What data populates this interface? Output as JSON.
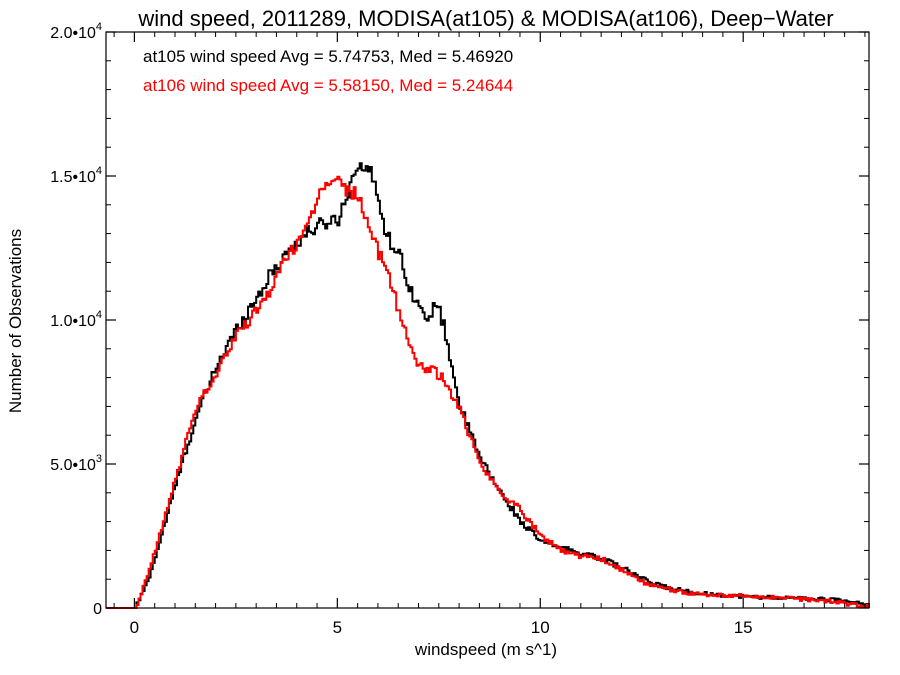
{
  "chart_data": {
    "type": "line",
    "title": "wind speed, 2011289, MODISA(at105) & MODISA(at106), Deep−Water",
    "xlabel": "windspeed (m s^1)",
    "ylabel": "Number of Observations",
    "xlim": [
      -0.7,
      18.1
    ],
    "ylim": [
      0,
      20000
    ],
    "x_ticks": [
      0,
      5,
      10,
      15
    ],
    "x_tick_labels": [
      "0",
      "5",
      "10",
      "15"
    ],
    "y_ticks": [
      0,
      5000,
      10000,
      15000,
      20000
    ],
    "y_tick_labels": [
      {
        "mant": "0",
        "exp": ""
      },
      {
        "mant": "5.0•10",
        "exp": "3"
      },
      {
        "mant": "1.0•10",
        "exp": "4"
      },
      {
        "mant": "1.5•10",
        "exp": "4"
      },
      {
        "mant": "2.0•10",
        "exp": "4"
      }
    ],
    "annotations": [
      "at105 wind speed Avg = 5.74753, Med = 5.46920",
      "at106 wind speed Avg = 5.58150, Med = 5.24644"
    ],
    "series": [
      {
        "color": "#000000",
        "x": [
          -0.7,
          0.0,
          0.1,
          0.3,
          0.5,
          0.7,
          1.0,
          1.3,
          1.5,
          2.0,
          2.5,
          3.0,
          3.3,
          3.7,
          4.0,
          4.3,
          4.7,
          5.0,
          5.3,
          5.5,
          5.6,
          5.8,
          6.0,
          6.2,
          6.5,
          6.8,
          7.0,
          7.2,
          7.4,
          7.6,
          8.0,
          8.5,
          9.0,
          9.5,
          10.0,
          10.5,
          11.0,
          11.5,
          12.0,
          12.5,
          13.0,
          13.5,
          14.0,
          15.0,
          16.0,
          17.0,
          17.5,
          18.1
        ],
        "y": [
          0,
          0,
          300,
          900,
          1800,
          2800,
          4300,
          5700,
          6600,
          8400,
          9700,
          10800,
          11500,
          12300,
          12700,
          13100,
          13400,
          13500,
          14700,
          15500,
          15300,
          15100,
          14200,
          12900,
          12300,
          11000,
          10500,
          9800,
          10700,
          9800,
          7000,
          5200,
          4000,
          3000,
          2300,
          2100,
          1900,
          1700,
          1400,
          1000,
          750,
          600,
          500,
          400,
          350,
          300,
          250,
          100
        ]
      },
      {
        "color": "#ff0000",
        "x": [
          -0.7,
          0.0,
          0.1,
          0.3,
          0.6,
          0.9,
          1.2,
          1.5,
          2.0,
          2.3,
          2.6,
          3.0,
          3.3,
          3.6,
          4.0,
          4.3,
          4.6,
          4.8,
          5.0,
          5.2,
          5.4,
          5.6,
          5.8,
          6.0,
          6.3,
          6.6,
          6.9,
          7.2,
          7.5,
          8.0,
          8.5,
          9.0,
          9.5,
          10.0,
          10.5,
          11.0,
          11.5,
          12.0,
          12.5,
          13.0,
          13.5,
          14.0,
          15.0,
          16.0,
          17.0,
          17.5,
          18.1
        ],
        "y": [
          0,
          0,
          300,
          1100,
          2500,
          4000,
          5500,
          7000,
          8100,
          9000,
          9700,
          10300,
          11000,
          11900,
          12700,
          13600,
          14500,
          14900,
          14800,
          14500,
          14400,
          13900,
          13100,
          12300,
          11300,
          9800,
          8600,
          8300,
          8100,
          6900,
          5000,
          4000,
          3400,
          2500,
          2000,
          1800,
          1700,
          1300,
          900,
          700,
          550,
          450,
          420,
          350,
          250,
          150,
          50
        ]
      }
    ]
  }
}
